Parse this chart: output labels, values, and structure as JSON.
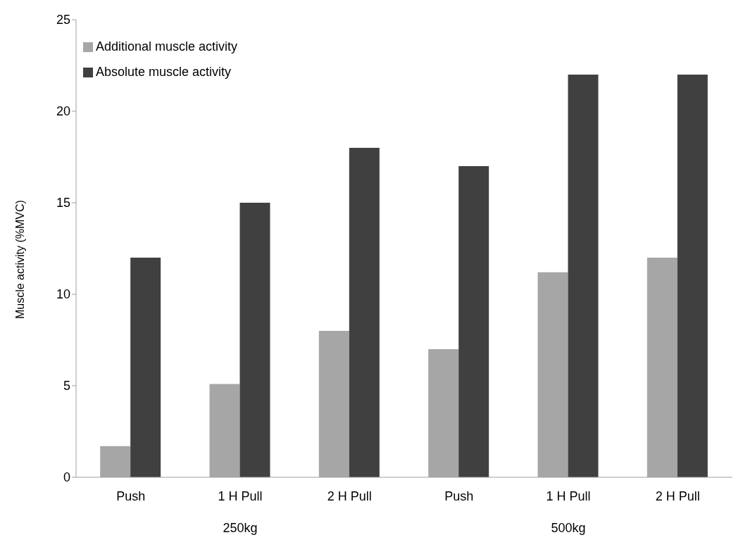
{
  "chart_data": {
    "type": "bar",
    "ylabel": "Muscle activity (%MVC)",
    "categories": [
      "Push",
      "1 H Pull",
      "2 H Pull",
      "Push",
      "1 H Pull",
      "2 H Pull"
    ],
    "series": [
      {
        "name": "Additional muscle activity",
        "color": "#a6a6a6",
        "values": [
          1.7,
          5.1,
          8,
          7,
          11.2,
          12
        ]
      },
      {
        "name": "Absolute muscle activity",
        "color": "#404040",
        "values": [
          12,
          15,
          18,
          17,
          22,
          22
        ]
      }
    ],
    "annotations": [
      "250kg",
      "500kg"
    ],
    "ylim": [
      0,
      25
    ],
    "yticks": [
      0,
      5,
      10,
      15,
      20,
      25
    ],
    "grid": false,
    "legend": "top left"
  }
}
